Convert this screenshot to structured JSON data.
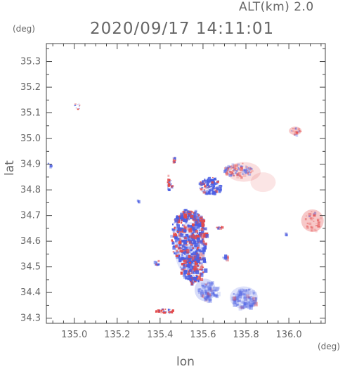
{
  "header": {
    "altitude_label": "ALT(km) 2.0",
    "timestamp": "2020/09/17 14:11:01"
  },
  "axes": {
    "y_unit": "(deg)",
    "x_unit": "(deg)",
    "y_label": "lat",
    "x_label": "lon",
    "x_ticks": [
      "135.0",
      "135.2",
      "135.4",
      "135.6",
      "135.8",
      "136.0"
    ],
    "y_ticks": [
      "35.3",
      "35.2",
      "35.1",
      "35.0",
      "34.9",
      "34.8",
      "34.7",
      "34.6",
      "34.5",
      "34.4",
      "34.3"
    ],
    "x_range": [
      134.87,
      136.17
    ],
    "y_range": [
      34.28,
      35.37
    ]
  },
  "colors": {
    "approaching": "#e34a4a",
    "receding": "#4a5ee3",
    "frame": "#444444"
  }
}
